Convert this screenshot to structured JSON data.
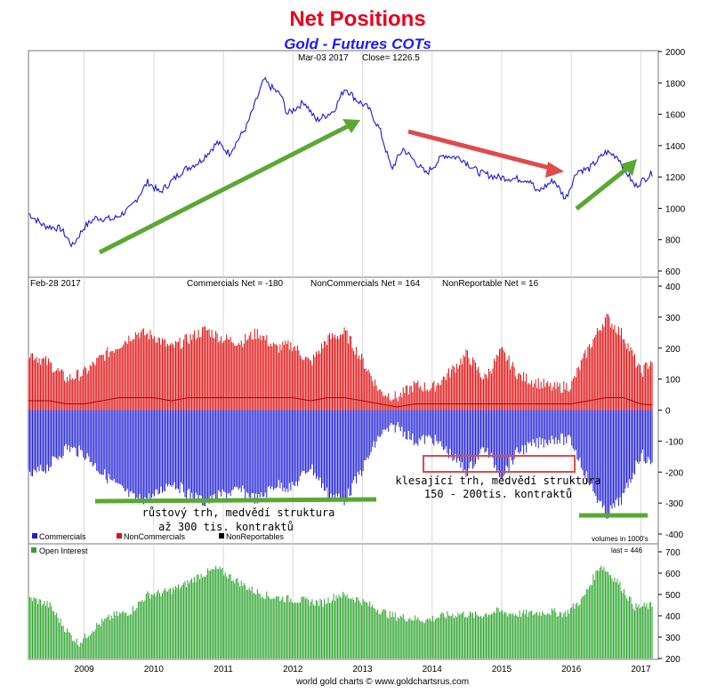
{
  "header": {
    "title": "Net Positions",
    "subtitle": "Gold - Futures COTs",
    "title_color": "#e8001c",
    "subtitle_color": "#1a1aff"
  },
  "price_panel": {
    "label": "Mar-03 2017",
    "close_label": "Close= 1226.5"
  },
  "cot_panel": {
    "date": "Feb-28 2017",
    "commercials_label": "Commercials Net = -180",
    "noncommercials_label": "NonCommercials Net = 164",
    "nonreportable_label": "NonReportable Net = 16",
    "legend": [
      "Commercials",
      "NonCommercials",
      "NonReportables"
    ],
    "legend_colors": [
      "#1f1fd6",
      "#e01010",
      "#000000"
    ],
    "units_note": "volumes in 1000's"
  },
  "oi_panel": {
    "label": "Open Interest",
    "last_label": "last = 446"
  },
  "annotations": {
    "bull_line1": "růstový trh, medvědí struktura",
    "bull_line2": "až 300 tis. kontraktů",
    "bear_line1": "klesající trh, medvědí struktura",
    "bear_line2": "150 - 200tis. kontraktů"
  },
  "footer": "world gold charts © www.goldchartsrus.com",
  "chart_data": [
    {
      "type": "line",
      "name": "price",
      "series": [
        {
          "x": [
            "2008-03",
            "2008-06",
            "2008-09",
            "2008-11",
            "2009-01",
            "2009-03",
            "2009-06",
            "2009-09",
            "2009-12",
            "2010-02",
            "2010-06",
            "2010-09",
            "2010-12",
            "2011-02",
            "2011-05",
            "2011-08",
            "2011-09",
            "2011-11",
            "2011-12",
            "2012-03",
            "2012-05",
            "2012-08",
            "2012-10",
            "2012-12",
            "2013-02",
            "2013-04",
            "2013-06",
            "2013-08",
            "2013-12",
            "2014-03",
            "2014-06",
            "2014-09",
            "2014-12",
            "2015-03",
            "2015-06",
            "2015-07",
            "2015-10",
            "2015-12",
            "2016-02",
            "2016-04",
            "2016-07",
            "2016-09",
            "2016-11",
            "2016-12",
            "2017-03"
          ],
          "y": [
            980,
            890,
            870,
            760,
            880,
            940,
            930,
            1000,
            1170,
            1100,
            1240,
            1300,
            1420,
            1350,
            1520,
            1820,
            1780,
            1720,
            1600,
            1680,
            1560,
            1620,
            1770,
            1690,
            1640,
            1500,
            1250,
            1380,
            1220,
            1340,
            1320,
            1230,
            1200,
            1190,
            1180,
            1100,
            1180,
            1060,
            1240,
            1250,
            1360,
            1330,
            1200,
            1140,
            1226.5
          ]
        }
      ],
      "ylim": [
        600,
        2000
      ],
      "yticks": [
        600,
        800,
        1000,
        1200,
        1400,
        1600,
        1800,
        2000
      ]
    },
    {
      "type": "bar",
      "name": "net positions",
      "x": [
        "2008-04",
        "2008-07",
        "2008-10",
        "2009-01",
        "2009-04",
        "2009-07",
        "2009-10",
        "2010-01",
        "2010-04",
        "2010-07",
        "2010-10",
        "2011-01",
        "2011-04",
        "2011-07",
        "2011-10",
        "2012-01",
        "2012-04",
        "2012-07",
        "2012-10",
        "2013-01",
        "2013-04",
        "2013-07",
        "2013-10",
        "2014-01",
        "2014-04",
        "2014-07",
        "2014-10",
        "2015-01",
        "2015-04",
        "2015-07",
        "2015-10",
        "2016-01",
        "2016-04",
        "2016-07",
        "2016-10",
        "2017-01",
        "2017-03"
      ],
      "series": [
        {
          "name": "NonCommercials",
          "values": [
            180,
            150,
            100,
            120,
            170,
            210,
            250,
            240,
            200,
            230,
            260,
            230,
            220,
            250,
            200,
            210,
            150,
            230,
            250,
            160,
            60,
            40,
            80,
            70,
            120,
            180,
            100,
            190,
            110,
            90,
            70,
            80,
            200,
            300,
            240,
            120,
            164
          ]
        },
        {
          "name": "Commercials",
          "values": [
            -210,
            -180,
            -120,
            -140,
            -200,
            -250,
            -290,
            -280,
            -230,
            -270,
            -300,
            -270,
            -260,
            -290,
            -240,
            -250,
            -180,
            -270,
            -290,
            -190,
            -80,
            -50,
            -100,
            -90,
            -140,
            -200,
            -120,
            -210,
            -130,
            -110,
            -90,
            -100,
            -230,
            -340,
            -280,
            -140,
            -180
          ]
        },
        {
          "name": "NonReportables",
          "values": [
            30,
            30,
            20,
            20,
            30,
            40,
            40,
            40,
            30,
            40,
            40,
            40,
            40,
            40,
            40,
            40,
            30,
            40,
            40,
            30,
            20,
            10,
            20,
            20,
            20,
            20,
            20,
            20,
            20,
            20,
            20,
            20,
            30,
            40,
            40,
            20,
            16
          ]
        }
      ],
      "ylim": [
        -400,
        400
      ],
      "yticks": [
        -400,
        -300,
        -200,
        -100,
        0,
        100,
        200,
        300,
        400
      ]
    },
    {
      "type": "bar",
      "name": "open interest",
      "x": [
        "2008-04",
        "2008-07",
        "2008-10",
        "2008-12",
        "2009-03",
        "2009-06",
        "2009-09",
        "2009-12",
        "2010-03",
        "2010-06",
        "2010-09",
        "2010-12",
        "2011-03",
        "2011-06",
        "2011-09",
        "2011-12",
        "2012-03",
        "2012-06",
        "2012-09",
        "2012-12",
        "2013-03",
        "2013-06",
        "2013-09",
        "2013-12",
        "2014-03",
        "2014-06",
        "2014-09",
        "2014-12",
        "2015-03",
        "2015-06",
        "2015-09",
        "2015-12",
        "2016-03",
        "2016-06",
        "2016-09",
        "2016-12",
        "2017-03"
      ],
      "series": [
        {
          "name": "Open Interest",
          "values": [
            480,
            450,
            330,
            270,
            350,
            400,
            420,
            500,
            510,
            540,
            590,
            620,
            570,
            520,
            490,
            480,
            470,
            460,
            500,
            480,
            440,
            400,
            390,
            380,
            400,
            410,
            400,
            420,
            410,
            410,
            420,
            410,
            480,
            640,
            560,
            440,
            446
          ]
        }
      ],
      "ylim": [
        200,
        700
      ],
      "yticks": [
        200,
        300,
        400,
        500,
        600,
        700
      ]
    }
  ],
  "x_axis": {
    "year_labels": [
      "2009",
      "2010",
      "2011",
      "2012",
      "2013",
      "2014",
      "2015",
      "2016",
      "2017"
    ]
  }
}
